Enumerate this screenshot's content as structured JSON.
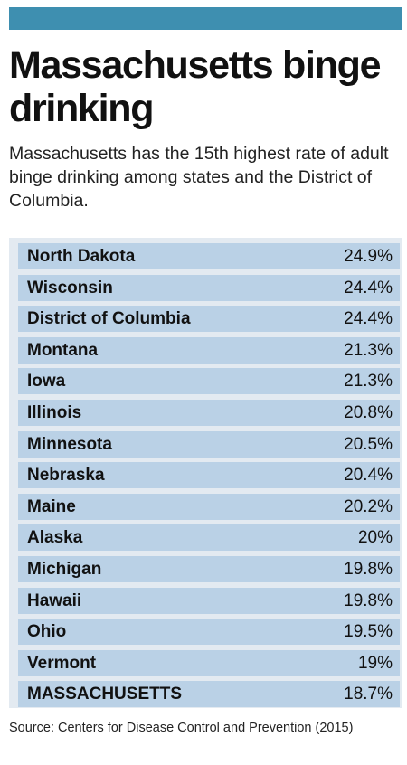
{
  "header": {
    "bar_color": "#3e8fb0",
    "title": "Massachusetts binge drinking",
    "subtitle": "Massachusetts has the 15th highest rate of adult binge drinking among states and the District of Columbia."
  },
  "chart_data": {
    "type": "table",
    "title": "Massachusetts binge drinking",
    "rows": [
      {
        "state": "North Dakota",
        "rate": "24.9%",
        "value": 24.9
      },
      {
        "state": "Wisconsin",
        "rate": "24.4%",
        "value": 24.4
      },
      {
        "state": "District of Columbia",
        "rate": "24.4%",
        "value": 24.4
      },
      {
        "state": "Montana",
        "rate": "21.3%",
        "value": 21.3
      },
      {
        "state": "Iowa",
        "rate": "21.3%",
        "value": 21.3
      },
      {
        "state": "Illinois",
        "rate": "20.8%",
        "value": 20.8
      },
      {
        "state": "Minnesota",
        "rate": "20.5%",
        "value": 20.5
      },
      {
        "state": "Nebraska",
        "rate": "20.4%",
        "value": 20.4
      },
      {
        "state": "Maine",
        "rate": "20.2%",
        "value": 20.2
      },
      {
        "state": "Alaska",
        "rate": "20%",
        "value": 20
      },
      {
        "state": "Michigan",
        "rate": "19.8%",
        "value": 19.8
      },
      {
        "state": "Hawaii",
        "rate": "19.8%",
        "value": 19.8
      },
      {
        "state": "Ohio",
        "rate": "19.5%",
        "value": 19.5
      },
      {
        "state": "Vermont",
        "rate": "19%",
        "value": 19
      },
      {
        "state": "MASSACHUSETTS",
        "rate": "18.7%",
        "value": 18.7
      }
    ],
    "row_color": "#bad1e6",
    "table_bg_color": "#e3eaf1"
  },
  "footer": {
    "source": "Source: Centers for Disease Control and Prevention (2015)"
  }
}
